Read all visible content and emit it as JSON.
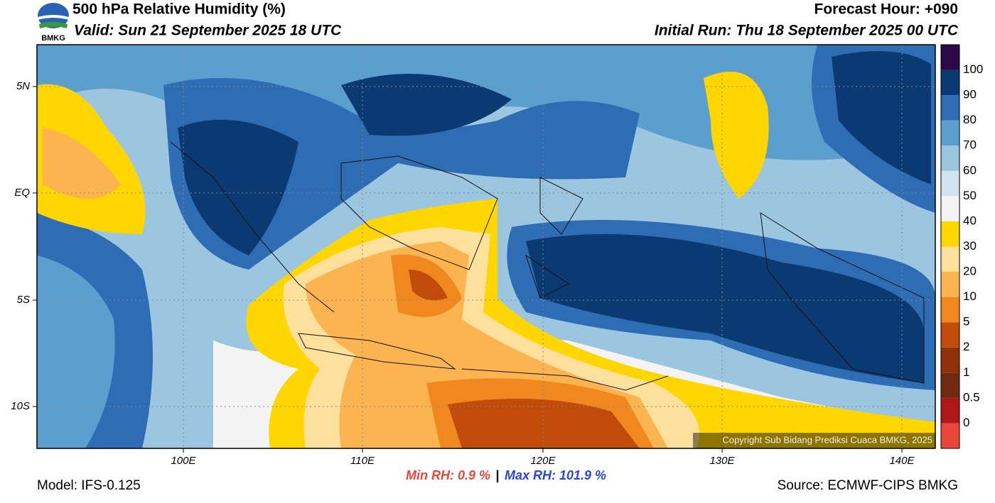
{
  "header": {
    "title": "500 hPa Relative Humidity (%)",
    "valid": "Valid: Sun 21 September 2025 18 UTC",
    "forecast_hour": "Forecast Hour: +090",
    "initial_run": "Initial Run: Thu 18 September 2025 00 UTC",
    "logo_text": "BMKG"
  },
  "map": {
    "lat_labels": [
      "5N",
      "EQ",
      "5S",
      "10S"
    ],
    "lon_labels": [
      "100E",
      "110E",
      "120E",
      "130E",
      "140E"
    ],
    "copyright": "Copyright Sub Bidang Prediksi Cuaca BMKG, 2025"
  },
  "colorbar": {
    "labels": [
      "0",
      "0.5",
      "1",
      "2",
      "5",
      "10",
      "20",
      "30",
      "40",
      "50",
      "60",
      "70",
      "80",
      "90",
      "100"
    ],
    "colors": [
      "#e8473a",
      "#b01717",
      "#6e2a10",
      "#8f310b",
      "#c14b08",
      "#f0871f",
      "#fbb450",
      "#fde09c",
      "#ffd600",
      "#f4f4f4",
      "#d3e4f1",
      "#9cc6e0",
      "#5b9fcf",
      "#2e6db4",
      "#0b3a72",
      "#2c0a47"
    ]
  },
  "footer": {
    "model": "Model: IFS-0.125",
    "min_rh": "Min RH:   0.9 %",
    "separator": "|",
    "max_rh": "Max RH: 101.9 %",
    "source": "Source: ECMWF-CIPS BMKG"
  }
}
